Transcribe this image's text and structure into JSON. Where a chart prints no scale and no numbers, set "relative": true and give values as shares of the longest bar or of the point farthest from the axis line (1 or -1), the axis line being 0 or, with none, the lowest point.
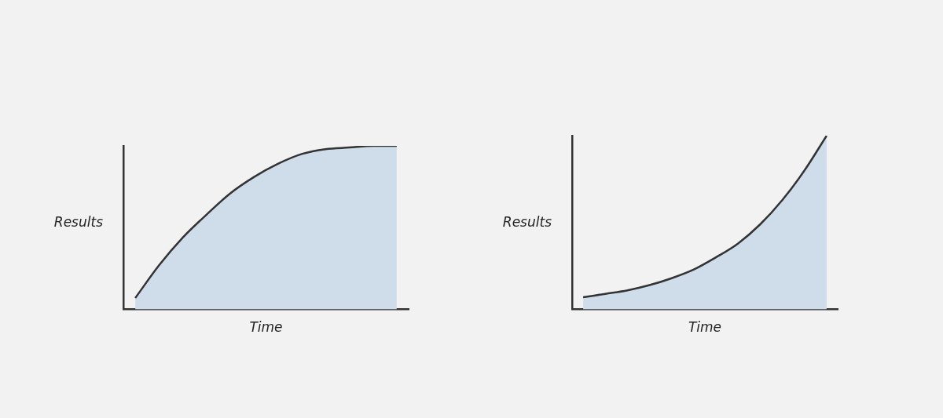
{
  "chart_data": [
    {
      "type": "area",
      "relative": true,
      "xlabel": "Time",
      "ylabel": "Results",
      "categories": [
        null,
        null,
        null,
        null,
        null,
        null,
        null,
        null,
        null,
        null,
        null,
        null
      ],
      "legend": false,
      "grid": false,
      "series": [
        {
          "color": "#cfdcea",
          "values": [
            0.07,
            0.27,
            0.44,
            0.58,
            0.71,
            0.81,
            0.89,
            0.95,
            0.98,
            0.99,
            1,
            1
          ]
        }
      ]
    },
    {
      "type": "area",
      "relative": true,
      "xlabel": "Time",
      "ylabel": "Results",
      "categories": [
        null,
        null,
        null,
        null,
        null,
        null,
        null,
        null,
        null,
        null,
        null,
        null
      ],
      "legend": false,
      "grid": false,
      "series": [
        {
          "color": "#cfdcea",
          "values": [
            0.07,
            0.09,
            0.11,
            0.14,
            0.18,
            0.23,
            0.3,
            0.38,
            0.49,
            0.63,
            0.8,
            1
          ]
        }
      ]
    }
  ]
}
